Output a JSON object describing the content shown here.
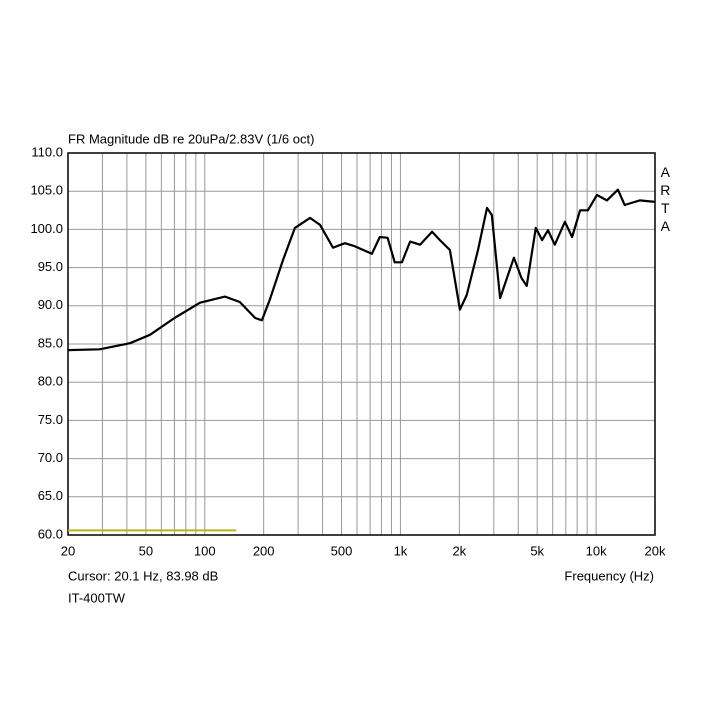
{
  "chart_data": {
    "type": "line",
    "title": "FR Magnitude dB re 20uPa/2.83V (1/6 oct)",
    "brand": "ARTA",
    "cursor": "Cursor: 20.1 Hz, 83.98 dB",
    "device": "IT-400TW",
    "x_label": "Frequency (Hz)",
    "xscale": "log",
    "xlim": [
      20,
      20000
    ],
    "ylim": [
      60,
      110
    ],
    "xticks": [
      20,
      50,
      100,
      200,
      500,
      {
        "value": 1000,
        "label": "1k"
      },
      {
        "value": 2000,
        "label": "2k"
      },
      {
        "value": 5000,
        "label": "5k"
      },
      {
        "value": 10000,
        "label": "10k"
      },
      {
        "value": 20000,
        "label": "20k"
      }
    ],
    "xminor": [
      30,
      40,
      60,
      70,
      80,
      90,
      300,
      400,
      600,
      700,
      800,
      900,
      3000,
      4000,
      6000,
      7000,
      8000,
      9000
    ],
    "yticks": [
      {
        "value": 60,
        "label": "60.0"
      },
      {
        "value": 65,
        "label": "65.0"
      },
      {
        "value": 70,
        "label": "70.0"
      },
      {
        "value": 75,
        "label": "75.0"
      },
      {
        "value": 80,
        "label": "80.0"
      },
      {
        "value": 85,
        "label": "85.0"
      },
      {
        "value": 90,
        "label": "90.0"
      },
      {
        "value": 95,
        "label": "95.0"
      },
      {
        "value": 100,
        "label": "100.0"
      },
      {
        "value": 105,
        "label": "105.0"
      },
      {
        "value": 110,
        "label": "110.0"
      }
    ],
    "grid": true,
    "series": [
      {
        "color": "#000000",
        "x": [
          20,
          29,
          41.5,
          52.5,
          70,
          94.5,
          127,
          151,
          181,
          196,
          215,
          251,
          289,
          345,
          388,
          452,
          520,
          584,
          715,
          784,
          860,
          935,
          1018,
          1120,
          1259,
          1452,
          1592,
          1790,
          2014,
          2180,
          2490,
          2770,
          2930,
          3230,
          3800,
          4160,
          4420,
          4920,
          5300,
          5680,
          6150,
          6930,
          7540,
          8280,
          9080,
          10100,
          11360,
          12920,
          14000,
          16700,
          20000
        ],
        "values": [
          84.2,
          84.3,
          85.1,
          86.2,
          88.4,
          90.4,
          91.2,
          90.5,
          88.4,
          88.1,
          90.8,
          96.0,
          100.2,
          101.5,
          100.6,
          97.6,
          98.2,
          97.8,
          96.8,
          99.0,
          98.9,
          95.7,
          95.7,
          98.4,
          98.0,
          99.7,
          98.6,
          97.3,
          89.5,
          91.4,
          97.3,
          102.8,
          101.9,
          91.0,
          96.3,
          93.6,
          92.6,
          100.2,
          98.6,
          99.9,
          98.0,
          101.0,
          99.0,
          102.5,
          102.5,
          104.5,
          103.8,
          105.2,
          103.2,
          103.8,
          103.6
        ]
      },
      {
        "color": "#b5b51e",
        "x": [
          20,
          145
        ],
        "values": [
          60.6,
          60.6
        ]
      }
    ]
  }
}
